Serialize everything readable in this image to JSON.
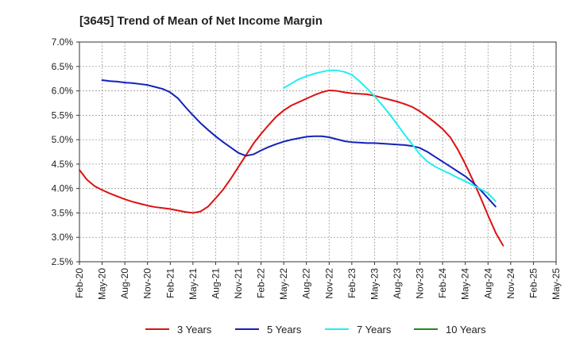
{
  "chart_data": {
    "type": "line",
    "title": "[3645]  Trend of Mean of Net Income Margin",
    "xlabel": "",
    "ylabel": "",
    "ylim": [
      2.5,
      7.0
    ],
    "y_ticks": [
      "2.5%",
      "3.0%",
      "3.5%",
      "4.0%",
      "4.5%",
      "5.0%",
      "5.5%",
      "6.0%",
      "6.5%",
      "7.0%"
    ],
    "x_ticks": [
      "Feb-20",
      "May-20",
      "Aug-20",
      "Nov-20",
      "Feb-21",
      "May-21",
      "Aug-21",
      "Nov-21",
      "Feb-22",
      "May-22",
      "Aug-22",
      "Nov-22",
      "Feb-23",
      "May-23",
      "Aug-23",
      "Nov-23",
      "Feb-24",
      "May-24",
      "Aug-24",
      "Nov-24",
      "Feb-25",
      "May-25"
    ],
    "grid": true,
    "legend_position": "bottom",
    "series": [
      {
        "name": "3 Years",
        "color": "#dd1111",
        "points": [
          [
            "Feb-20",
            4.38
          ],
          [
            "Mar-20",
            4.18
          ],
          [
            "Apr-20",
            4.05
          ],
          [
            "May-20",
            3.97
          ],
          [
            "Jun-20",
            3.9
          ],
          [
            "Jul-20",
            3.84
          ],
          [
            "Aug-20",
            3.78
          ],
          [
            "Sep-20",
            3.73
          ],
          [
            "Oct-20",
            3.69
          ],
          [
            "Nov-20",
            3.65
          ],
          [
            "Dec-20",
            3.62
          ],
          [
            "Jan-21",
            3.6
          ],
          [
            "Feb-21",
            3.58
          ],
          [
            "Mar-21",
            3.55
          ],
          [
            "Apr-21",
            3.52
          ],
          [
            "May-21",
            3.5
          ],
          [
            "Jun-21",
            3.53
          ],
          [
            "Jul-21",
            3.63
          ],
          [
            "Aug-21",
            3.8
          ],
          [
            "Sep-21",
            3.98
          ],
          [
            "Oct-21",
            4.2
          ],
          [
            "Nov-21",
            4.44
          ],
          [
            "Dec-21",
            4.68
          ],
          [
            "Jan-22",
            4.92
          ],
          [
            "Feb-22",
            5.12
          ],
          [
            "Mar-22",
            5.3
          ],
          [
            "Apr-22",
            5.47
          ],
          [
            "May-22",
            5.6
          ],
          [
            "Jun-22",
            5.7
          ],
          [
            "Jul-22",
            5.77
          ],
          [
            "Aug-22",
            5.84
          ],
          [
            "Sep-22",
            5.91
          ],
          [
            "Oct-22",
            5.97
          ],
          [
            "Nov-22",
            6.01
          ],
          [
            "Dec-22",
            6.0
          ],
          [
            "Jan-23",
            5.97
          ],
          [
            "Feb-23",
            5.95
          ],
          [
            "Mar-23",
            5.94
          ],
          [
            "Apr-23",
            5.93
          ],
          [
            "May-23",
            5.9
          ],
          [
            "Jun-23",
            5.86
          ],
          [
            "Jul-23",
            5.82
          ],
          [
            "Aug-23",
            5.78
          ],
          [
            "Sep-23",
            5.73
          ],
          [
            "Oct-23",
            5.67
          ],
          [
            "Nov-23",
            5.58
          ],
          [
            "Dec-23",
            5.47
          ],
          [
            "Jan-24",
            5.35
          ],
          [
            "Feb-24",
            5.22
          ],
          [
            "Mar-24",
            5.05
          ],
          [
            "Apr-24",
            4.8
          ],
          [
            "May-24",
            4.5
          ],
          [
            "Jun-24",
            4.17
          ],
          [
            "Jul-24",
            3.82
          ],
          [
            "Aug-24",
            3.45
          ],
          [
            "Sep-24",
            3.1
          ],
          [
            "Oct-24",
            2.83
          ]
        ]
      },
      {
        "name": "5 Years",
        "color": "#1122bb",
        "points": [
          [
            "May-20",
            6.22
          ],
          [
            "Jun-20",
            6.2
          ],
          [
            "Jul-20",
            6.19
          ],
          [
            "Aug-20",
            6.17
          ],
          [
            "Sep-20",
            6.16
          ],
          [
            "Oct-20",
            6.14
          ],
          [
            "Nov-20",
            6.12
          ],
          [
            "Dec-20",
            6.08
          ],
          [
            "Jan-21",
            6.04
          ],
          [
            "Feb-21",
            5.97
          ],
          [
            "Mar-21",
            5.85
          ],
          [
            "Apr-21",
            5.67
          ],
          [
            "May-21",
            5.5
          ],
          [
            "Jun-21",
            5.34
          ],
          [
            "Jul-21",
            5.2
          ],
          [
            "Aug-21",
            5.07
          ],
          [
            "Sep-21",
            4.95
          ],
          [
            "Oct-21",
            4.84
          ],
          [
            "Nov-21",
            4.73
          ],
          [
            "Dec-21",
            4.67
          ],
          [
            "Jan-22",
            4.7
          ],
          [
            "Feb-22",
            4.78
          ],
          [
            "Mar-22",
            4.85
          ],
          [
            "Apr-22",
            4.91
          ],
          [
            "May-22",
            4.96
          ],
          [
            "Jun-22",
            5.0
          ],
          [
            "Jul-22",
            5.03
          ],
          [
            "Aug-22",
            5.06
          ],
          [
            "Sep-22",
            5.07
          ],
          [
            "Oct-22",
            5.07
          ],
          [
            "Nov-22",
            5.05
          ],
          [
            "Dec-22",
            5.01
          ],
          [
            "Jan-23",
            4.97
          ],
          [
            "Feb-23",
            4.95
          ],
          [
            "Mar-23",
            4.94
          ],
          [
            "Apr-23",
            4.93
          ],
          [
            "May-23",
            4.93
          ],
          [
            "Jun-23",
            4.92
          ],
          [
            "Jul-23",
            4.91
          ],
          [
            "Aug-23",
            4.9
          ],
          [
            "Sep-23",
            4.89
          ],
          [
            "Oct-23",
            4.87
          ],
          [
            "Nov-23",
            4.83
          ],
          [
            "Dec-23",
            4.75
          ],
          [
            "Jan-24",
            4.65
          ],
          [
            "Feb-24",
            4.55
          ],
          [
            "Mar-24",
            4.45
          ],
          [
            "Apr-24",
            4.35
          ],
          [
            "May-24",
            4.25
          ],
          [
            "Jun-24",
            4.12
          ],
          [
            "Jul-24",
            3.97
          ],
          [
            "Aug-24",
            3.8
          ],
          [
            "Sep-24",
            3.63
          ]
        ]
      },
      {
        "name": "7 Years",
        "color": "#22eeee",
        "points": [
          [
            "May-22",
            6.06
          ],
          [
            "Jun-22",
            6.15
          ],
          [
            "Jul-22",
            6.24
          ],
          [
            "Aug-22",
            6.3
          ],
          [
            "Sep-22",
            6.35
          ],
          [
            "Oct-22",
            6.39
          ],
          [
            "Nov-22",
            6.42
          ],
          [
            "Dec-22",
            6.42
          ],
          [
            "Jan-23",
            6.39
          ],
          [
            "Feb-23",
            6.33
          ],
          [
            "Mar-23",
            6.2
          ],
          [
            "Apr-23",
            6.05
          ],
          [
            "May-23",
            5.89
          ],
          [
            "Jun-23",
            5.71
          ],
          [
            "Jul-23",
            5.52
          ],
          [
            "Aug-23",
            5.31
          ],
          [
            "Sep-23",
            5.1
          ],
          [
            "Oct-23",
            4.9
          ],
          [
            "Nov-23",
            4.7
          ],
          [
            "Dec-23",
            4.55
          ],
          [
            "Jan-24",
            4.45
          ],
          [
            "Feb-24",
            4.37
          ],
          [
            "Mar-24",
            4.3
          ],
          [
            "Apr-24",
            4.22
          ],
          [
            "May-24",
            4.15
          ],
          [
            "Jun-24",
            4.07
          ],
          [
            "Jul-24",
            3.99
          ],
          [
            "Aug-24",
            3.9
          ],
          [
            "Sep-24",
            3.74
          ]
        ]
      },
      {
        "name": "10 Years",
        "color": "#228822",
        "points": []
      }
    ]
  }
}
